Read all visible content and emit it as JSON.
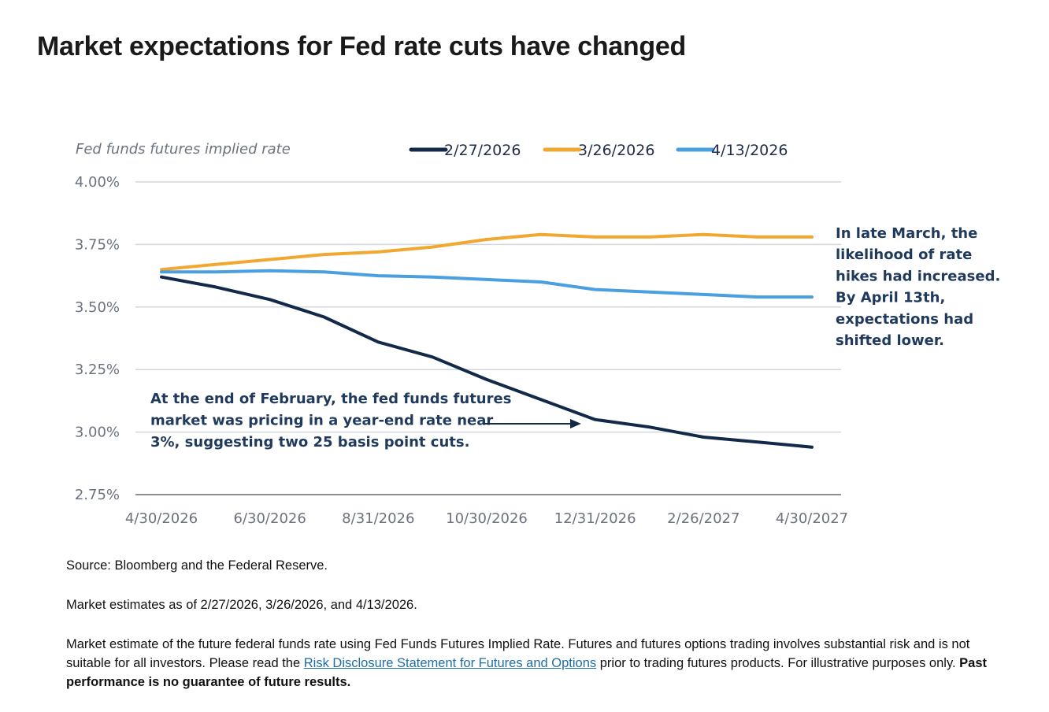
{
  "title": "Market expectations for Fed rate cuts have changed",
  "chart_data": {
    "type": "line",
    "title": "Fed funds futures implied rate",
    "categories": [
      "4/30/2026",
      "6/30/2026",
      "8/31/2026",
      "10/30/2026",
      "12/31/2026",
      "2/26/2027",
      "4/30/2027"
    ],
    "ylim": [
      2.75,
      4.0
    ],
    "y_ticks": [
      4.0,
      3.75,
      3.5,
      3.25,
      3.0,
      2.75
    ],
    "y_tick_labels": [
      "4.00%",
      "3.75%",
      "3.50%",
      "3.25%",
      "3.00%",
      "2.75%"
    ],
    "grid": true,
    "legend_position": "top",
    "series": [
      {
        "name": "2/27/2026",
        "color": "#12294a",
        "x": [
          0,
          0.5,
          1,
          1.5,
          2,
          2.5,
          3,
          3.5,
          4,
          4.5,
          5,
          5.5,
          6
        ],
        "values": [
          3.62,
          3.58,
          3.53,
          3.46,
          3.36,
          3.3,
          3.21,
          3.13,
          3.05,
          3.02,
          2.98,
          2.96,
          2.94
        ]
      },
      {
        "name": "3/26/2026",
        "color": "#f0a830",
        "x": [
          0,
          0.5,
          1,
          1.5,
          2,
          2.5,
          3,
          3.5,
          4,
          4.5,
          5,
          5.5,
          6
        ],
        "values": [
          3.65,
          3.67,
          3.69,
          3.71,
          3.72,
          3.74,
          3.77,
          3.79,
          3.78,
          3.78,
          3.79,
          3.78,
          3.78
        ]
      },
      {
        "name": "4/13/2026",
        "color": "#4a9fe0",
        "x": [
          0,
          0.5,
          1,
          1.5,
          2,
          2.5,
          3,
          3.5,
          4,
          4.5,
          5,
          5.5,
          6
        ],
        "values": [
          3.64,
          3.64,
          3.645,
          3.64,
          3.625,
          3.62,
          3.61,
          3.6,
          3.57,
          3.56,
          3.55,
          3.54,
          3.54
        ]
      }
    ],
    "annotations": [
      {
        "id": "march",
        "lines": [
          "In late March, the",
          "likelihood of rate",
          "hikes had increased.",
          "By April 13th,",
          "expectations had",
          "shifted lower."
        ]
      },
      {
        "id": "february",
        "lines": [
          "At the end of February, the fed funds futures",
          "market was pricing in a year-end rate near",
          "3%, suggesting two 25 basis point cuts."
        ]
      }
    ]
  },
  "footer": {
    "source": "Source: Bloomberg and the Federal Reserve.",
    "as_of": "Market estimates as of 2/27/2026, 3/26/2026, and 4/13/2026.",
    "disclaimer_part1": "Market estimate of the future federal funds rate using Fed Funds Futures Implied Rate. Futures and futures options trading involves substantial risk and is not suitable for all investors. Please read the ",
    "link_text": "Risk Disclosure Statement for Futures and Options",
    "disclaimer_part2": " prior to trading futures products. For illustrative purposes only. ",
    "disclaimer_bold": "Past performance is no guarantee of future results."
  }
}
